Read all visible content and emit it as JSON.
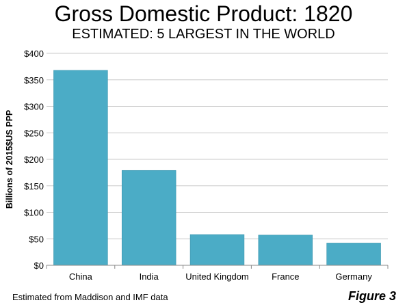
{
  "chart_data": {
    "type": "bar",
    "title": "Gross Domestic Product: 1820",
    "subtitle": "ESTIMATED: 5 LARGEST IN THE WORLD",
    "ylabel": "Billions of 2015$US  PPP",
    "xlabel": "",
    "categories": [
      "China",
      "India",
      "United Kingdom",
      "France",
      "Germany"
    ],
    "values": [
      368,
      179,
      58,
      57,
      42
    ],
    "ylim": [
      0,
      400
    ],
    "yticks": [
      0,
      50,
      100,
      150,
      200,
      250,
      300,
      350,
      400
    ],
    "ytick_labels": [
      "$0",
      "$50",
      "$100",
      "$150",
      "$200",
      "$250",
      "$300",
      "$350",
      "$400"
    ],
    "grid": true,
    "legend": "none",
    "bar_color": "#4BACC6"
  },
  "footer": {
    "source": "Estimated from Maddison and IMF data",
    "figure_label": "Figure 3"
  }
}
